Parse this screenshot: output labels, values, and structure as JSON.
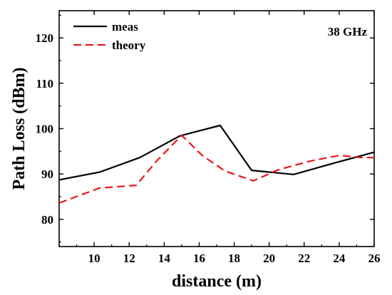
{
  "chart_data": {
    "type": "line",
    "xlabel": "distance (m)",
    "ylabel": "Path Loss (dBm)",
    "xlim": [
      8,
      26
    ],
    "ylim": [
      74,
      126
    ],
    "xticks": [
      10,
      12,
      14,
      16,
      18,
      20,
      22,
      24,
      26
    ],
    "yticks": [
      80,
      90,
      100,
      110,
      120
    ],
    "annotation": "38 GHz",
    "legend_position": "top-left",
    "grid": false,
    "series": [
      {
        "name": "meas",
        "style": "solid",
        "color": "#000000",
        "x": [
          8.0,
          10.3,
          12.6,
          14.9,
          17.2,
          19.0,
          21.4,
          23.7,
          26.0
        ],
        "y": [
          88.7,
          90.4,
          93.6,
          98.4,
          100.7,
          90.8,
          89.9,
          92.4,
          94.8
        ]
      },
      {
        "name": "theory",
        "style": "dashed",
        "color": "#e8161b",
        "x": [
          8.0,
          10.3,
          12.4,
          13.6,
          15.0,
          16.2,
          17.5,
          19.1,
          20.5,
          22.3,
          24.0,
          25.3,
          26.0
        ],
        "y": [
          83.6,
          86.9,
          87.5,
          93.0,
          98.5,
          94.0,
          90.6,
          88.5,
          90.9,
          92.8,
          94.1,
          93.6,
          93.6
        ]
      }
    ]
  }
}
